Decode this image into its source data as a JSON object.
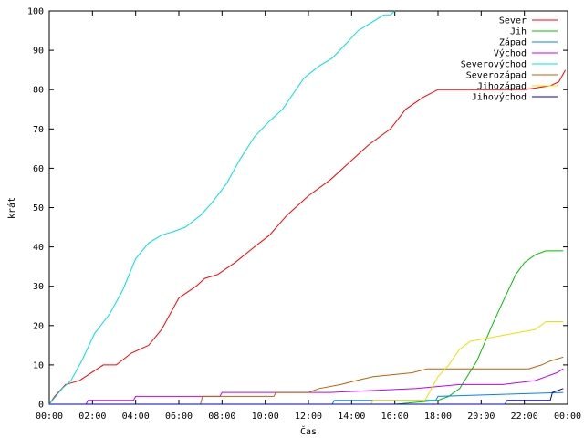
{
  "chart_data": {
    "type": "line",
    "xlabel": "Čas",
    "ylabel": "krát",
    "xlim": [
      0,
      24
    ],
    "ylim": [
      0,
      100
    ],
    "x_ticks": [
      {
        "value": 0,
        "label": "00:00"
      },
      {
        "value": 2,
        "label": "02:00"
      },
      {
        "value": 4,
        "label": "04:00"
      },
      {
        "value": 6,
        "label": "06:00"
      },
      {
        "value": 8,
        "label": "08:00"
      },
      {
        "value": 10,
        "label": "10:00"
      },
      {
        "value": 12,
        "label": "12:00"
      },
      {
        "value": 14,
        "label": "14:00"
      },
      {
        "value": 16,
        "label": "16:00"
      },
      {
        "value": 18,
        "label": "18:00"
      },
      {
        "value": 20,
        "label": "20:00"
      },
      {
        "value": 22,
        "label": "22:00"
      },
      {
        "value": 24,
        "label": "00:00"
      }
    ],
    "y_ticks": [
      0,
      10,
      20,
      30,
      40,
      50,
      60,
      70,
      80,
      90,
      100
    ],
    "grid": false,
    "legend_position": "top-right",
    "series": [
      {
        "name": "Sever",
        "color": "#ff0000",
        "x": [
          0,
          0.25,
          0.75,
          1.4,
          2.5,
          3.1,
          3.8,
          4.6,
          5.2,
          6.0,
          6.8,
          7.2,
          7.8,
          8.6,
          9.5,
          10.2,
          11.0,
          12.0,
          13.0,
          14.0,
          14.8,
          15.8,
          16.5,
          17.3,
          18.0,
          19.0,
          20.0,
          21.0,
          22.0,
          23.2,
          23.6,
          23.9
        ],
        "y": [
          0,
          2,
          5,
          6,
          10,
          10,
          13,
          15,
          19,
          27,
          30,
          32,
          33,
          36,
          40,
          43,
          48,
          53,
          57,
          62,
          66,
          70,
          75,
          78,
          80,
          80,
          80,
          80,
          80,
          81,
          82,
          85
        ]
      },
      {
        "name": "Jih",
        "color": "#00c000",
        "x": [
          0,
          16.0,
          18.0,
          18.5,
          19.0,
          19.8,
          20.5,
          21.0,
          21.6,
          22.0,
          22.5,
          23.0,
          23.8
        ],
        "y": [
          0,
          0,
          1,
          2,
          4,
          11,
          20,
          26,
          33,
          36,
          38,
          39,
          39
        ]
      },
      {
        "name": "Západ",
        "color": "#0080ff",
        "x": [
          0,
          13.1,
          13.2,
          17.9,
          18.0,
          23.8
        ],
        "y": [
          0,
          0,
          1,
          1,
          2,
          3
        ]
      },
      {
        "name": "Východ",
        "color": "#c000ff",
        "x": [
          0,
          1.7,
          1.8,
          3.9,
          4.0,
          7.9,
          8.0,
          12.0,
          13.0,
          17.0,
          19.0,
          21.0,
          22.5,
          23.0,
          23.5,
          23.8
        ],
        "y": [
          0,
          0,
          1,
          1,
          2,
          2,
          3,
          3,
          3,
          4,
          5,
          5,
          6,
          7,
          8,
          9
        ]
      },
      {
        "name": "Severovýchod",
        "color": "#00e0e0",
        "x": [
          0,
          0.6,
          1.0,
          1.5,
          2.1,
          2.8,
          3.4,
          4.0,
          4.6,
          5.2,
          5.8,
          6.3,
          7.0,
          7.5,
          8.2,
          8.8,
          9.5,
          10.2,
          10.8,
          11.3,
          11.8,
          12.5,
          13.1,
          13.8,
          14.3,
          14.9,
          15.5,
          15.8,
          16.0
        ],
        "y": [
          0,
          4,
          6,
          11,
          18,
          23,
          29,
          37,
          41,
          43,
          44,
          45,
          48,
          51,
          56,
          62,
          68,
          72,
          75,
          79,
          83,
          86,
          88,
          92,
          95,
          97,
          99,
          99,
          100
        ]
      },
      {
        "name": "Severozápad",
        "color": "#c06000",
        "x": [
          0,
          7.0,
          7.1,
          10.4,
          10.5,
          12.0,
          12.5,
          13.5,
          14.2,
          15.0,
          16.8,
          17.5,
          22.2,
          22.8,
          23.2,
          23.8
        ],
        "y": [
          0,
          0,
          2,
          2,
          3,
          3,
          4,
          5,
          6,
          7,
          8,
          9,
          9,
          10,
          11,
          12
        ]
      },
      {
        "name": "Jihozápad",
        "color": "#f0e000",
        "x": [
          0,
          14.9,
          15.0,
          17.4,
          17.6,
          18.0,
          18.5,
          19.0,
          19.5,
          20.5,
          21.5,
          22.5,
          23.0,
          23.8
        ],
        "y": [
          0,
          0,
          1,
          1,
          3,
          7,
          10,
          14,
          16,
          17,
          18,
          19,
          21,
          21
        ]
      },
      {
        "name": "Jihovýchod",
        "color": "#0000c0",
        "x": [
          0,
          21.1,
          21.2,
          23.2,
          23.3,
          23.8
        ],
        "y": [
          0,
          0,
          1,
          1,
          3,
          4
        ]
      }
    ]
  }
}
